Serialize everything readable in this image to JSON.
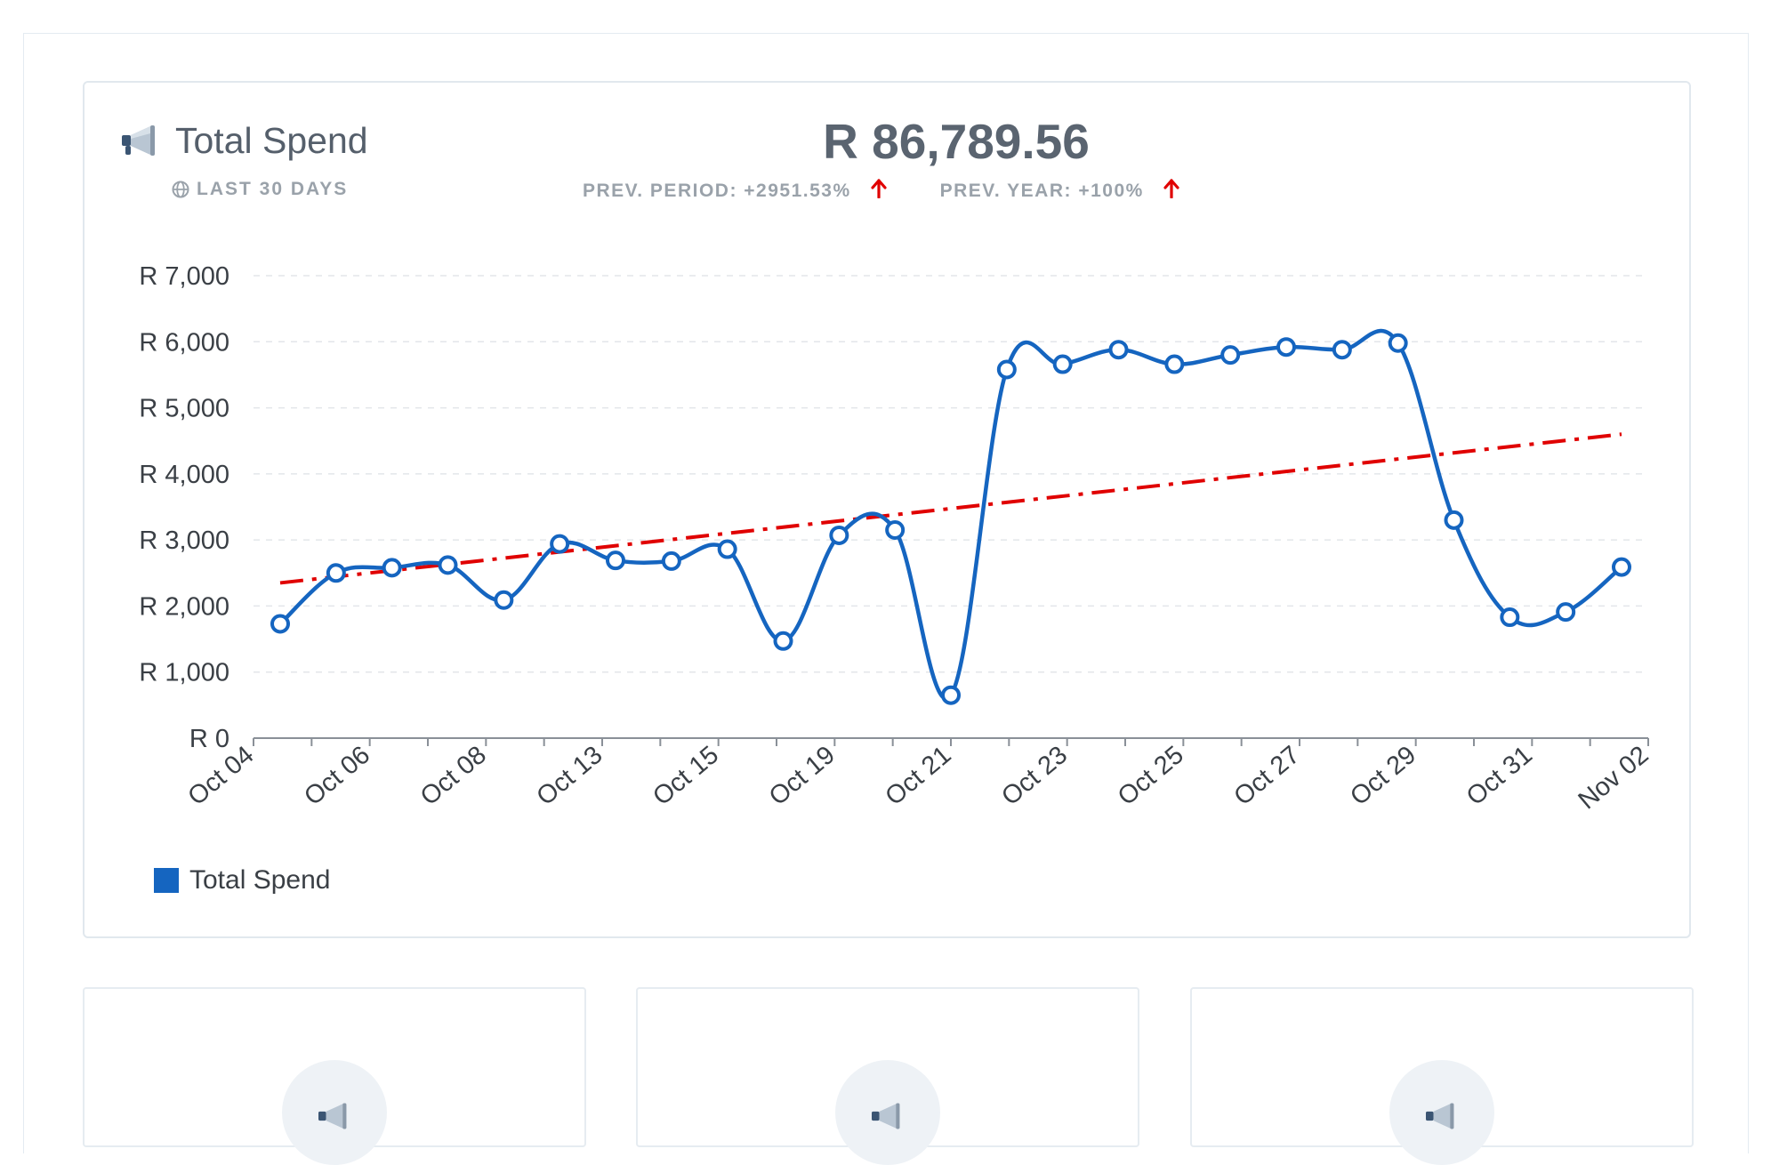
{
  "header": {
    "title": "Total Spend",
    "period": "LAST 30 DAYS",
    "value": "R 86,789.56",
    "prev_period": "PREV. PERIOD: +2951.53%",
    "prev_year": "PREV. YEAR: +100%"
  },
  "icons": {
    "title_icon": "megaphone-icon",
    "period_icon": "globe-icon",
    "trend_icon": "arrow-up-icon"
  },
  "colors": {
    "series": "#1565c0",
    "trend": "#e00000",
    "arrow": "#e00000"
  },
  "chart_data": {
    "type": "line",
    "title": "Total Spend",
    "xlabel": "",
    "ylabel": "",
    "ylim": [
      0,
      7000
    ],
    "y_ticks": [
      "R 0",
      "R 1,000",
      "R 2,000",
      "R 3,000",
      "R 4,000",
      "R 5,000",
      "R 6,000",
      "R 7,000"
    ],
    "y_tick_values": [
      0,
      1000,
      2000,
      3000,
      4000,
      5000,
      6000,
      7000
    ],
    "x_tick_labels": [
      "Oct 04",
      "Oct 06",
      "Oct 08",
      "Oct 13",
      "Oct 15",
      "Oct 19",
      "Oct 21",
      "Oct 23",
      "Oct 25",
      "Oct 27",
      "Oct 29",
      "Oct 31",
      "Nov 02"
    ],
    "grid": true,
    "legend_position": "bottom-left",
    "series": [
      {
        "name": "Total Spend",
        "values": [
          1730,
          2500,
          2580,
          2620,
          2090,
          2940,
          2690,
          2680,
          2860,
          1470,
          3070,
          3150,
          650,
          5580,
          5660,
          5880,
          5660,
          5800,
          5920,
          5880,
          5980,
          3300,
          1830,
          1910,
          2590
        ]
      },
      {
        "name": "Trend",
        "start": 2350,
        "end": 4600
      }
    ]
  },
  "legend": {
    "label": "Total Spend"
  }
}
